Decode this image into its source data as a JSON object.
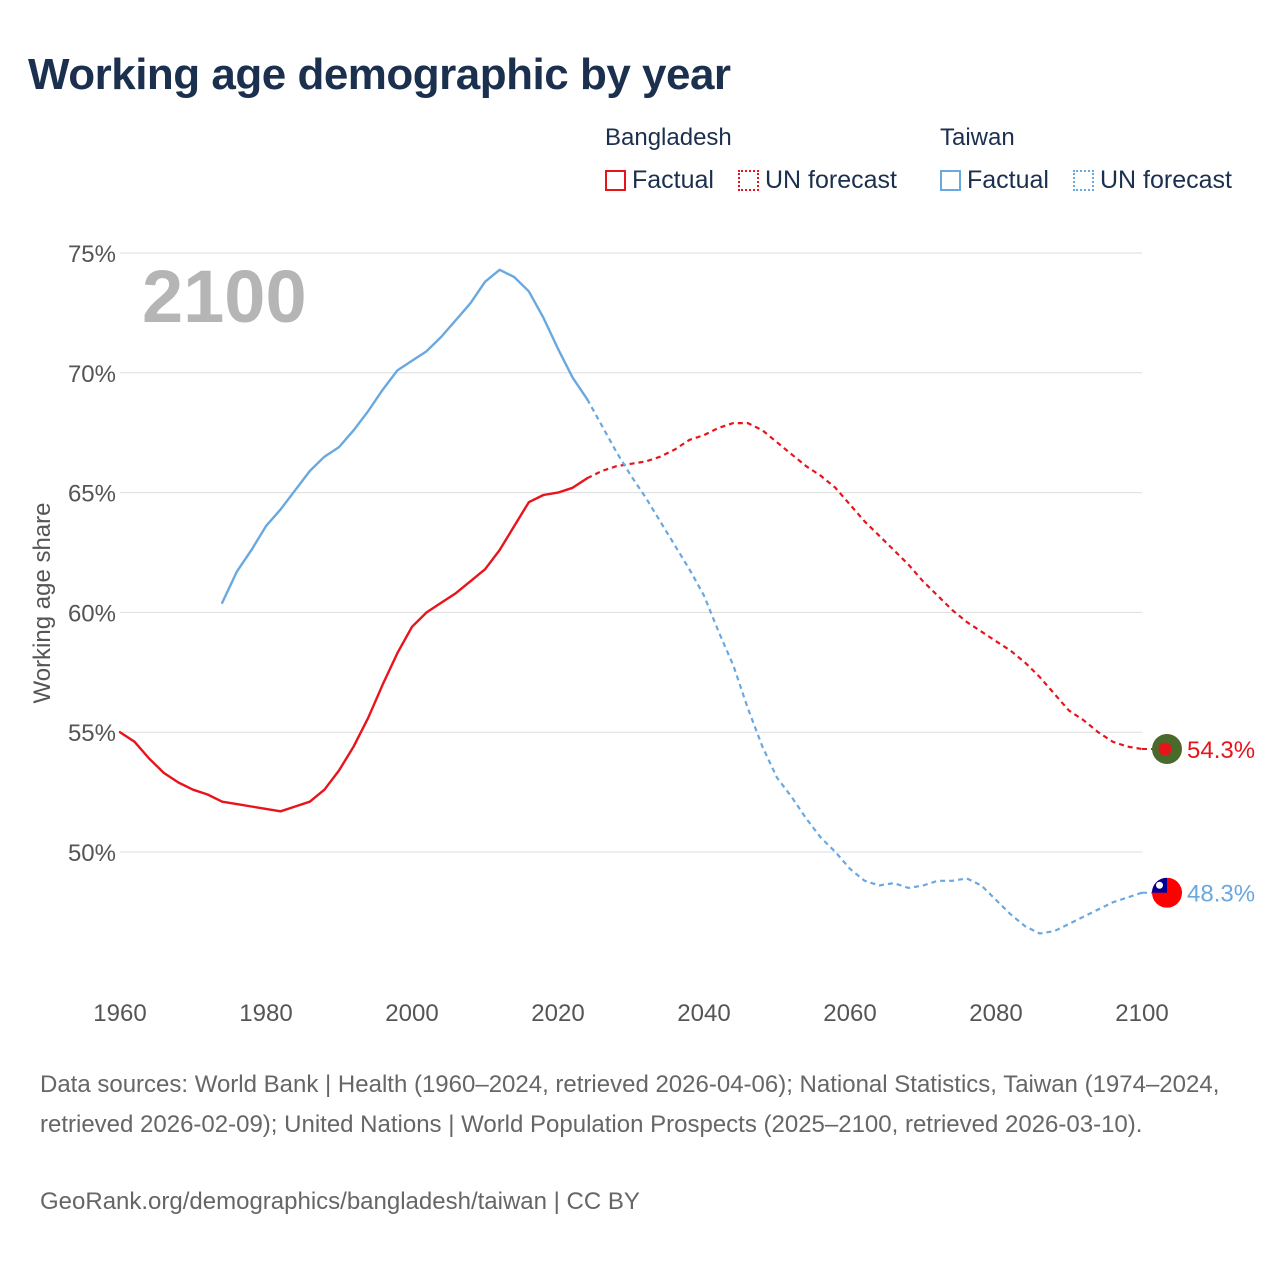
{
  "title": "Working age demographic by year",
  "year_watermark": "2100",
  "legend": {
    "groups": [
      {
        "name": "Bangladesh",
        "color": "#e8141c",
        "factual_label": "Factual",
        "forecast_label": "UN forecast"
      },
      {
        "name": "Taiwan",
        "color": "#6aa8e0",
        "factual_label": "Factual",
        "forecast_label": "UN forecast"
      }
    ]
  },
  "chart_data": {
    "type": "line",
    "title": "Working age demographic by year",
    "xlabel": "",
    "ylabel": "Working age share",
    "xlim": [
      1960,
      2100
    ],
    "ylim": [
      44.5,
      75
    ],
    "x_ticks": [
      "1960",
      "1980",
      "2000",
      "2020",
      "2040",
      "2060",
      "2080",
      "2100"
    ],
    "y_ticks": [
      "50%",
      "55%",
      "60%",
      "65%",
      "70%",
      "75%"
    ],
    "series": [
      {
        "name": "Bangladesh",
        "color": "#e8141c",
        "forecast_start": 2024,
        "end_label": "54.3%",
        "points": [
          [
            1960,
            55.0
          ],
          [
            1962,
            54.6
          ],
          [
            1964,
            53.9
          ],
          [
            1966,
            53.3
          ],
          [
            1968,
            52.9
          ],
          [
            1970,
            52.6
          ],
          [
            1972,
            52.4
          ],
          [
            1974,
            52.1
          ],
          [
            1976,
            52.0
          ],
          [
            1978,
            51.9
          ],
          [
            1980,
            51.8
          ],
          [
            1982,
            51.7
          ],
          [
            1984,
            51.9
          ],
          [
            1986,
            52.1
          ],
          [
            1988,
            52.6
          ],
          [
            1990,
            53.4
          ],
          [
            1992,
            54.4
          ],
          [
            1994,
            55.6
          ],
          [
            1996,
            57.0
          ],
          [
            1998,
            58.3
          ],
          [
            2000,
            59.4
          ],
          [
            2002,
            60.0
          ],
          [
            2004,
            60.4
          ],
          [
            2006,
            60.8
          ],
          [
            2008,
            61.3
          ],
          [
            2010,
            61.8
          ],
          [
            2012,
            62.6
          ],
          [
            2014,
            63.6
          ],
          [
            2016,
            64.6
          ],
          [
            2018,
            64.9
          ],
          [
            2020,
            65.0
          ],
          [
            2022,
            65.2
          ],
          [
            2024,
            65.6
          ],
          [
            2026,
            65.9
          ],
          [
            2028,
            66.1
          ],
          [
            2030,
            66.2
          ],
          [
            2032,
            66.3
          ],
          [
            2034,
            66.5
          ],
          [
            2036,
            66.8
          ],
          [
            2038,
            67.2
          ],
          [
            2040,
            67.4
          ],
          [
            2042,
            67.7
          ],
          [
            2044,
            67.9
          ],
          [
            2046,
            67.9
          ],
          [
            2048,
            67.6
          ],
          [
            2050,
            67.1
          ],
          [
            2052,
            66.6
          ],
          [
            2054,
            66.1
          ],
          [
            2056,
            65.7
          ],
          [
            2058,
            65.2
          ],
          [
            2060,
            64.5
          ],
          [
            2062,
            63.8
          ],
          [
            2064,
            63.2
          ],
          [
            2066,
            62.6
          ],
          [
            2068,
            62.0
          ],
          [
            2070,
            61.3
          ],
          [
            2072,
            60.7
          ],
          [
            2074,
            60.1
          ],
          [
            2076,
            59.6
          ],
          [
            2078,
            59.2
          ],
          [
            2080,
            58.8
          ],
          [
            2082,
            58.4
          ],
          [
            2084,
            57.9
          ],
          [
            2086,
            57.3
          ],
          [
            2088,
            56.6
          ],
          [
            2090,
            55.9
          ],
          [
            2092,
            55.5
          ],
          [
            2094,
            55.0
          ],
          [
            2096,
            54.6
          ],
          [
            2098,
            54.4
          ],
          [
            2100,
            54.3
          ]
        ]
      },
      {
        "name": "Taiwan",
        "color": "#6aa8e0",
        "forecast_start": 2024,
        "end_label": "48.3%",
        "points": [
          [
            1974,
            60.4
          ],
          [
            1976,
            61.7
          ],
          [
            1978,
            62.6
          ],
          [
            1980,
            63.6
          ],
          [
            1982,
            64.3
          ],
          [
            1984,
            65.1
          ],
          [
            1986,
            65.9
          ],
          [
            1988,
            66.5
          ],
          [
            1990,
            66.9
          ],
          [
            1992,
            67.6
          ],
          [
            1994,
            68.4
          ],
          [
            1996,
            69.3
          ],
          [
            1998,
            70.1
          ],
          [
            2000,
            70.5
          ],
          [
            2002,
            70.9
          ],
          [
            2004,
            71.5
          ],
          [
            2006,
            72.2
          ],
          [
            2008,
            72.9
          ],
          [
            2010,
            73.8
          ],
          [
            2012,
            74.3
          ],
          [
            2014,
            74.0
          ],
          [
            2016,
            73.4
          ],
          [
            2018,
            72.3
          ],
          [
            2020,
            71.0
          ],
          [
            2022,
            69.8
          ],
          [
            2024,
            68.9
          ],
          [
            2026,
            67.8
          ],
          [
            2028,
            66.7
          ],
          [
            2030,
            65.7
          ],
          [
            2032,
            64.8
          ],
          [
            2034,
            63.8
          ],
          [
            2036,
            62.8
          ],
          [
            2038,
            61.8
          ],
          [
            2040,
            60.7
          ],
          [
            2042,
            59.2
          ],
          [
            2044,
            57.8
          ],
          [
            2046,
            56.0
          ],
          [
            2048,
            54.4
          ],
          [
            2050,
            53.1
          ],
          [
            2052,
            52.3
          ],
          [
            2054,
            51.4
          ],
          [
            2056,
            50.6
          ],
          [
            2058,
            50.0
          ],
          [
            2060,
            49.3
          ],
          [
            2062,
            48.8
          ],
          [
            2064,
            48.6
          ],
          [
            2066,
            48.7
          ],
          [
            2068,
            48.5
          ],
          [
            2070,
            48.6
          ],
          [
            2072,
            48.8
          ],
          [
            2074,
            48.8
          ],
          [
            2076,
            48.9
          ],
          [
            2078,
            48.6
          ],
          [
            2080,
            48.0
          ],
          [
            2082,
            47.4
          ],
          [
            2084,
            46.9
          ],
          [
            2086,
            46.6
          ],
          [
            2088,
            46.7
          ],
          [
            2090,
            47.0
          ],
          [
            2092,
            47.3
          ],
          [
            2094,
            47.6
          ],
          [
            2096,
            47.9
          ],
          [
            2098,
            48.1
          ],
          [
            2100,
            48.3
          ]
        ]
      }
    ]
  },
  "footer": {
    "sources": "Data sources: World Bank | Health (1960–2024, retrieved 2026-04-06); National Statistics, Taiwan (1974–2024, retrieved 2026-02-09); United Nations | World Population Prospects (2025–2100, retrieved 2026-03-10).",
    "credit": "GeoRank.org/demographics/bangladesh/taiwan | CC BY"
  },
  "colors": {
    "title": "#1b2f4e",
    "axis_text": "#555555",
    "grid": "#dddddd",
    "watermark": "#b5b5b5",
    "bangladesh_flag_green": "#4a6a2c",
    "bangladesh_flag_red": "#e8141c",
    "taiwan_flag_red": "#fe0000",
    "taiwan_flag_blue": "#000095"
  }
}
